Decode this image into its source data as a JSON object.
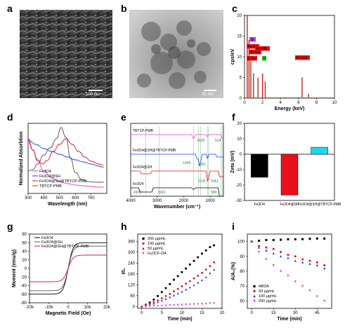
{
  "panels": {
    "a": "a",
    "b": "b",
    "c": "c",
    "d": "d",
    "e": "e",
    "f": "f",
    "g": "g",
    "h": "h",
    "i": "i"
  },
  "scalebars": {
    "a": "100 nm",
    "b": "25 nm"
  },
  "colors": {
    "black": "#000000",
    "red": "#e8101a",
    "blue": "#1a3cff",
    "magenta": "#e83cde",
    "cyan": "#19d9f0",
    "grey": "#555555",
    "green": "#2e8b2e"
  },
  "chart_data": [
    {
      "panel": "c",
      "type": "bar",
      "xlabel": "Energy (keV)",
      "ylabel": "cps/eV",
      "xlim": [
        0,
        10
      ],
      "ylim": [
        0,
        20
      ],
      "xticks": [
        "0",
        "2",
        "4",
        "6",
        "8",
        "10"
      ],
      "yticks": [
        "0",
        "5",
        "10",
        "15",
        "20"
      ],
      "peaks": [
        {
          "x": 0.3,
          "y": 20
        },
        {
          "x": 0.5,
          "y": 14
        },
        {
          "x": 0.7,
          "y": 9
        },
        {
          "x": 1.0,
          "y": 6
        },
        {
          "x": 1.5,
          "y": 5
        },
        {
          "x": 2.0,
          "y": 6
        },
        {
          "x": 2.3,
          "y": 4
        },
        {
          "x": 6.4,
          "y": 5
        },
        {
          "x": 7.1,
          "y": 1
        }
      ],
      "tags": [
        "Si",
        "Fe-Ka",
        "Zn-Ka",
        "C-Ka",
        "O",
        "Fe-Ka1",
        "Fe-KBI"
      ]
    },
    {
      "panel": "d",
      "type": "line",
      "xlabel": "Wavelength (nm)",
      "ylabel": "Normalized Absorbtion",
      "xlim": [
        300,
        800
      ],
      "xticks": [
        "300",
        "400",
        "500",
        "600",
        "700"
      ],
      "series": [
        {
          "name": "Fe3O4",
          "color": "magenta",
          "x": [
            300,
            330,
            360,
            400,
            450,
            500,
            550,
            600,
            650,
            700,
            750,
            780
          ],
          "y": [
            0.74,
            0.62,
            0.46,
            0.32,
            0.22,
            0.17,
            0.14,
            0.12,
            0.11,
            0.1,
            0.09,
            0.09
          ]
        },
        {
          "name": "Fe3O4@SH",
          "color": "blue",
          "x": [
            300,
            350,
            400,
            450,
            500,
            550,
            600,
            650,
            700,
            750,
            780
          ],
          "y": [
            0.76,
            0.7,
            0.64,
            0.6,
            0.56,
            0.52,
            0.48,
            0.45,
            0.42,
            0.39,
            0.37
          ]
        },
        {
          "name": "Fe3O4@SH@TBTCP-PMB",
          "color": "red",
          "x": [
            300,
            330,
            360,
            390,
            420,
            460,
            500,
            540,
            580,
            620,
            660,
            700,
            750,
            780
          ],
          "y": [
            0.78,
            0.62,
            0.48,
            0.42,
            0.47,
            0.6,
            0.7,
            0.78,
            0.7,
            0.6,
            0.52,
            0.46,
            0.42,
            0.4
          ]
        },
        {
          "name": "TBTCP-PMB",
          "color": "grey",
          "x": [
            300,
            330,
            360,
            400,
            440,
            480,
            510,
            540,
            570,
            600,
            640,
            680,
            720,
            780
          ],
          "y": [
            0.32,
            0.34,
            0.42,
            0.55,
            0.65,
            0.78,
            0.94,
            0.8,
            0.5,
            0.3,
            0.2,
            0.17,
            0.16,
            0.16
          ]
        }
      ]
    },
    {
      "panel": "e",
      "type": "line",
      "xlabel": "Wavenumber (cm⁻¹)",
      "xlim": [
        4000,
        500
      ],
      "xticks": [
        "4000",
        "3000",
        "2000",
        "1000"
      ],
      "traces": [
        {
          "name": "TBTCP-PMB",
          "color": "magenta"
        },
        {
          "name": "Fe3O4@SH@TBTCP-PMB",
          "color": "blue"
        },
        {
          "name": "Fe3O4@SH",
          "color": "red"
        },
        {
          "name": "Fe3O4",
          "color": "black"
        }
      ],
      "annotations": [
        "1628",
        "534",
        "1444",
        "1361",
        "1105",
        "1061",
        "3430",
        "2930",
        "589"
      ]
    },
    {
      "panel": "f",
      "type": "bar",
      "ylabel": "Zeta (mV)",
      "ylim": [
        -30,
        20
      ],
      "yticks": [
        "20",
        "10",
        "0",
        "-10",
        "-20",
        "-30"
      ],
      "categories": [
        "Fe3O4",
        "Fe3O4@SH",
        "Fe3O4@SH@TBTCP-PMB"
      ],
      "values": [
        -15,
        -26.5,
        4.5
      ],
      "colors": [
        "black",
        "red",
        "cyan"
      ]
    },
    {
      "panel": "g",
      "type": "line",
      "xlabel": "Magnetic Field (Oe)",
      "ylabel": "Moment (emu/g)",
      "xlim": [
        -20000,
        20000
      ],
      "ylim": [
        -80,
        80
      ],
      "xticks": [
        "-20k",
        "-10k",
        "0",
        "10k",
        "20k"
      ],
      "yticks": [
        "-80",
        "-60",
        "-40",
        "-20",
        "0",
        "20",
        "40",
        "60",
        "80"
      ],
      "series": [
        {
          "name": "Fe3O4",
          "color": "black",
          "ms": 60
        },
        {
          "name": "Fe3O4@SH",
          "color": "grey",
          "ms": 52
        },
        {
          "name": "Fe3O4@SH@TBTCP-PMB",
          "color": "red",
          "ms": 31
        }
      ]
    },
    {
      "panel": "h",
      "type": "scatter",
      "xlabel": "Time (min)",
      "ylabel": "I/I₀",
      "xlim": [
        -1,
        20
      ],
      "ylim": [
        -10,
        400
      ],
      "xticks": [
        "0",
        "5",
        "10",
        "15",
        "20"
      ],
      "yticks": [
        "0",
        "60",
        "120",
        "180",
        "240",
        "300",
        "360"
      ],
      "x": [
        0,
        1,
        2,
        3,
        4,
        5,
        6,
        7,
        8,
        9,
        10,
        11,
        12,
        13,
        14,
        15,
        16,
        17,
        18
      ],
      "series": [
        {
          "name": "200 μg/mL",
          "color": "black",
          "marker": "square",
          "values": [
            0,
            10,
            22,
            38,
            58,
            80,
            102,
            124,
            148,
            168,
            190,
            210,
            232,
            252,
            272,
            292,
            310,
            328,
            338
          ]
        },
        {
          "name": "100 μg/mL",
          "color": "red",
          "marker": "circle",
          "values": [
            0,
            8,
            15,
            24,
            34,
            46,
            58,
            70,
            84,
            98,
            112,
            126,
            140,
            156,
            170,
            186,
            204,
            224,
            244
          ]
        },
        {
          "name": "50 μg/mL",
          "color": "blue",
          "marker": "triangle",
          "values": [
            0,
            5,
            10,
            17,
            25,
            33,
            42,
            52,
            62,
            72,
            82,
            94,
            106,
            118,
            132,
            146,
            162,
            184,
            204
          ]
        },
        {
          "name": "H₂DCF-DA",
          "color": "magenta",
          "marker": "triangle-down",
          "values": [
            0,
            1,
            2,
            3,
            4,
            5,
            6,
            7,
            8,
            9,
            10,
            11,
            12,
            13,
            14,
            15,
            16,
            17,
            18
          ]
        }
      ]
    },
    {
      "panel": "i",
      "type": "scatter",
      "xlabel": "Time (min)",
      "ylabel": "A/A₀(%)",
      "xlim": [
        -3,
        55
      ],
      "ylim": [
        55,
        105
      ],
      "xticks": [
        "0",
        "15",
        "30",
        "45"
      ],
      "yticks": [
        "60",
        "70",
        "80",
        "90",
        "100"
      ],
      "x": [
        0,
        5,
        10,
        15,
        20,
        25,
        30,
        35,
        40,
        45,
        50
      ],
      "series": [
        {
          "name": "ABDA",
          "color": "black",
          "marker": "square",
          "values": [
            100,
            100.5,
            101,
            101,
            101.2,
            101.5,
            101.5,
            101.6,
            101.8,
            102,
            102
          ]
        },
        {
          "name": "50 μg/mL",
          "color": "red",
          "marker": "circle",
          "values": [
            100,
            97,
            96,
            95,
            93,
            91,
            90,
            88,
            87,
            86,
            84
          ]
        },
        {
          "name": "100 μg/mL",
          "color": "blue",
          "marker": "triangle",
          "values": [
            100,
            96,
            94,
            92,
            90,
            89,
            87,
            86,
            85,
            84,
            82
          ]
        },
        {
          "name": "200 μg/mL",
          "color": "magenta",
          "marker": "triangle-down",
          "values": [
            100,
            93,
            88,
            84,
            80,
            77,
            73,
            70,
            67,
            63,
            60
          ]
        }
      ]
    }
  ]
}
